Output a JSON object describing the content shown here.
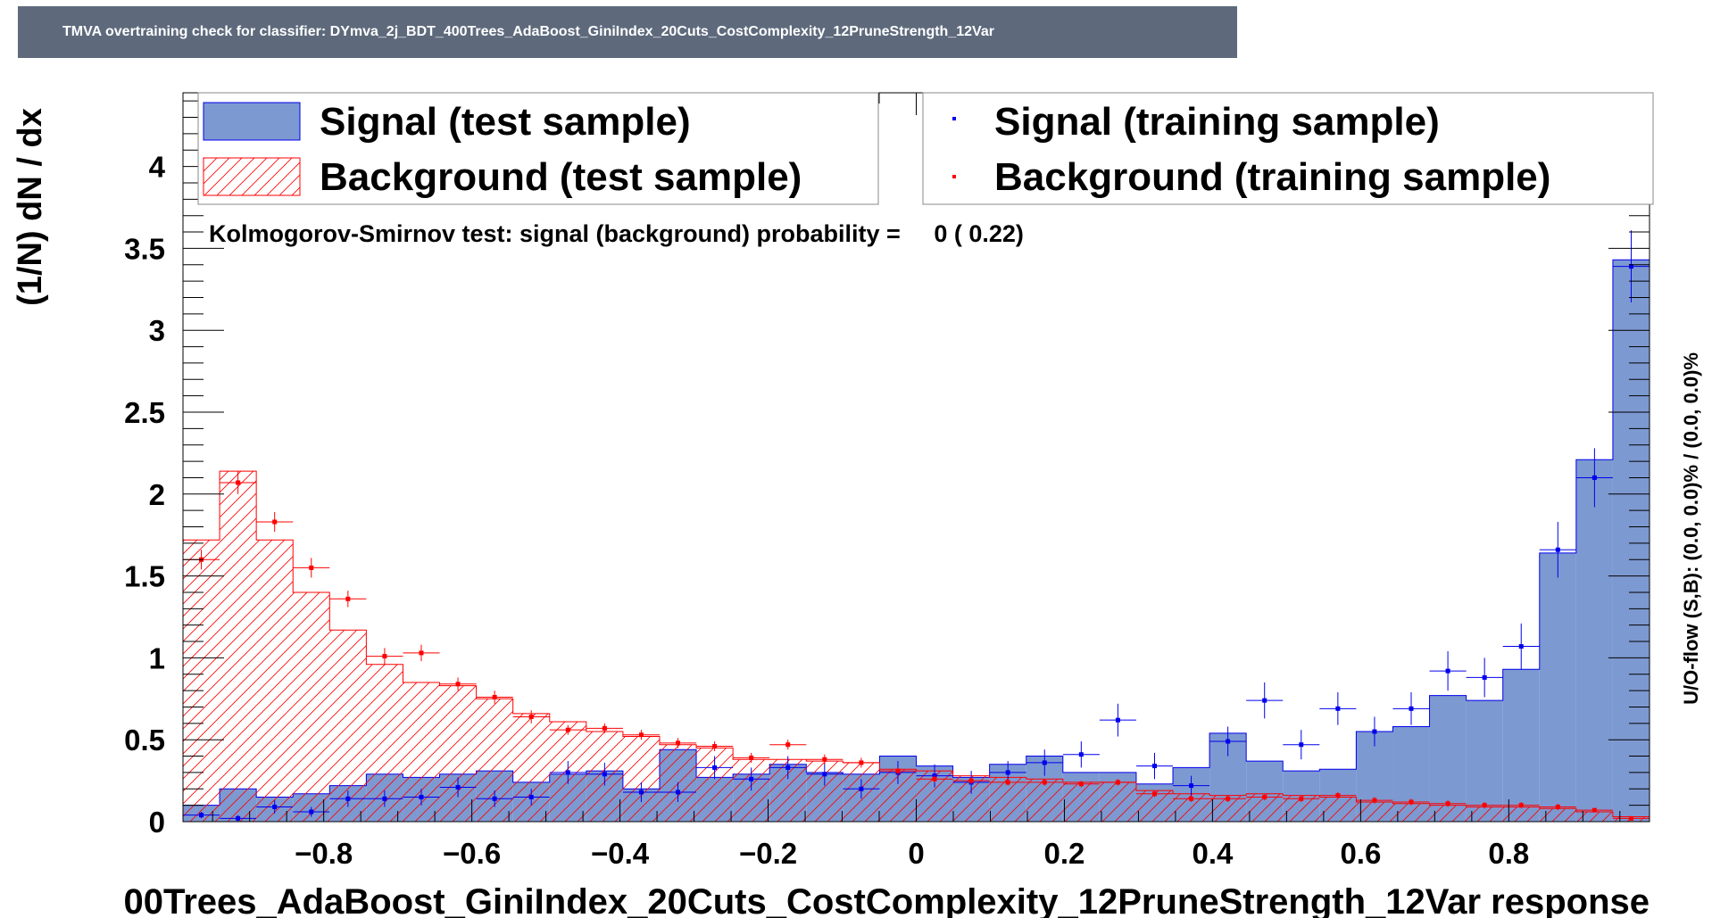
{
  "window_title": "TMVA overtraining check for classifier: DYmva_2j_BDT_400Trees_AdaBoost_GiniIndex_20Cuts_CostComplexity_12PruneStrength_12Var",
  "colors": {
    "signal_fill": "#7d99d1",
    "signal_line": "#0000ee",
    "background_line": "#ff0000",
    "title_bg": "#5e6a7c"
  },
  "chart_data": {
    "type": "bar",
    "title": "TMVA overtraining check for classifier: DYmva_2j_BDT_400Trees_AdaBoost_GiniIndex_20Cuts_CostComplexity_12PruneStrength_12Var",
    "xlabel": "00Trees_AdaBoost_GiniIndex_20Cuts_CostComplexity_12PruneStrength_12Var response",
    "ylabel": "(1/N) dN / dx",
    "right_label": "U/O-flow (S,B): (0.0, 0.0)% / (0.0, 0.0)%",
    "annotation": "Kolmogorov-Smirnov test: signal (background) probability =     0 ( 0.22)",
    "xlim": [
      -0.99,
      0.99
    ],
    "ylim": [
      0,
      4.45
    ],
    "xticks": [
      -0.8,
      -0.6,
      -0.4,
      -0.2,
      0,
      0.2,
      0.4,
      0.6,
      0.8
    ],
    "xtick_labels": [
      "−0.8",
      "−0.6",
      "−0.4",
      "−0.2",
      "0",
      "0.2",
      "0.4",
      "0.6",
      "0.8"
    ],
    "yticks": [
      0,
      0.5,
      1,
      1.5,
      2,
      2.5,
      3,
      3.5,
      4
    ],
    "ytick_labels": [
      "0",
      "0.5",
      "1",
      "1.5",
      "2",
      "2.5",
      "3",
      "3.5",
      "4"
    ],
    "legend": {
      "placement": "top",
      "entries": [
        "Signal (test sample)",
        "Background (test sample)",
        "Signal (training sample)",
        "Background (training sample)"
      ]
    },
    "bin_edges": [
      -0.99,
      -0.9405,
      -0.891,
      -0.8415,
      -0.792,
      -0.7425,
      -0.693,
      -0.6435,
      -0.594,
      -0.5445,
      -0.495,
      -0.4455,
      -0.396,
      -0.3465,
      -0.297,
      -0.2475,
      -0.198,
      -0.1485,
      -0.099,
      -0.0495,
      0,
      0.0495,
      0.099,
      0.1485,
      0.198,
      0.2475,
      0.297,
      0.3465,
      0.396,
      0.4455,
      0.495,
      0.5445,
      0.594,
      0.6435,
      0.693,
      0.7425,
      0.792,
      0.8415,
      0.891,
      0.9405,
      0.99
    ],
    "series": [
      {
        "name": "Signal (test sample)",
        "style": "filled-histogram",
        "values": [
          0.1,
          0.2,
          0.15,
          0.17,
          0.22,
          0.29,
          0.27,
          0.29,
          0.31,
          0.24,
          0.29,
          0.31,
          0.2,
          0.44,
          0.27,
          0.29,
          0.35,
          0.3,
          0.29,
          0.4,
          0.34,
          0.27,
          0.35,
          0.4,
          0.3,
          0.3,
          0.23,
          0.33,
          0.54,
          0.37,
          0.31,
          0.32,
          0.55,
          0.58,
          0.77,
          0.74,
          0.93,
          1.64,
          2.21,
          3.43
        ]
      },
      {
        "name": "Background (test sample)",
        "style": "hatched-histogram",
        "values": [
          1.72,
          2.14,
          1.72,
          1.4,
          1.17,
          0.96,
          0.85,
          0.83,
          0.75,
          0.66,
          0.61,
          0.55,
          0.52,
          0.47,
          0.45,
          0.38,
          0.38,
          0.37,
          0.36,
          0.32,
          0.31,
          0.28,
          0.27,
          0.26,
          0.24,
          0.24,
          0.19,
          0.17,
          0.16,
          0.17,
          0.16,
          0.15,
          0.12,
          0.11,
          0.1,
          0.09,
          0.09,
          0.08,
          0.06,
          0.03
        ]
      },
      {
        "name": "Signal (training sample)",
        "style": "points",
        "values": [
          0.04,
          0.02,
          0.09,
          0.06,
          0.14,
          0.14,
          0.15,
          0.21,
          0.14,
          0.15,
          0.3,
          0.29,
          0.18,
          0.18,
          0.33,
          0.26,
          0.33,
          0.29,
          0.2,
          0.3,
          0.28,
          0.24,
          0.3,
          0.36,
          0.41,
          0.62,
          0.34,
          0.22,
          0.49,
          0.74,
          0.47,
          0.69,
          0.55,
          0.69,
          0.92,
          0.88,
          1.07,
          1.66,
          2.1,
          3.39
        ],
        "errors": [
          0.02,
          0.02,
          0.04,
          0.03,
          0.05,
          0.05,
          0.05,
          0.06,
          0.05,
          0.05,
          0.07,
          0.07,
          0.06,
          0.06,
          0.07,
          0.07,
          0.07,
          0.07,
          0.06,
          0.07,
          0.07,
          0.07,
          0.07,
          0.08,
          0.08,
          0.1,
          0.08,
          0.06,
          0.09,
          0.11,
          0.09,
          0.1,
          0.09,
          0.1,
          0.12,
          0.12,
          0.14,
          0.17,
          0.18,
          0.22
        ]
      },
      {
        "name": "Background (training sample)",
        "style": "points",
        "values": [
          1.6,
          2.07,
          1.83,
          1.55,
          1.36,
          1.01,
          1.03,
          0.84,
          0.76,
          0.64,
          0.56,
          0.57,
          0.53,
          0.48,
          0.46,
          0.39,
          0.47,
          0.38,
          0.36,
          0.31,
          0.26,
          0.25,
          0.24,
          0.24,
          0.23,
          0.24,
          0.17,
          0.14,
          0.14,
          0.15,
          0.14,
          0.16,
          0.13,
          0.12,
          0.11,
          0.1,
          0.1,
          0.09,
          0.07,
          0.02
        ],
        "errors": [
          0.06,
          0.07,
          0.06,
          0.06,
          0.05,
          0.05,
          0.05,
          0.04,
          0.04,
          0.04,
          0.03,
          0.03,
          0.03,
          0.03,
          0.03,
          0.03,
          0.03,
          0.03,
          0.03,
          0.02,
          0.02,
          0.02,
          0.02,
          0.02,
          0.02,
          0.02,
          0.02,
          0.02,
          0.02,
          0.02,
          0.02,
          0.02,
          0.02,
          0.02,
          0.02,
          0.02,
          0.02,
          0.02,
          0.01,
          0.01
        ]
      }
    ]
  }
}
